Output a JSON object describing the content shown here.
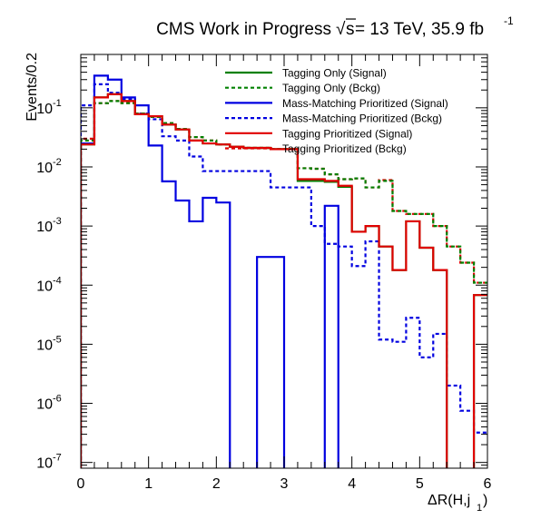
{
  "chart_data": {
    "type": "histogram-step",
    "title": "CMS Work in Progress",
    "energy_label": "s",
    "energy_value": " = 13 TeV, 35.9 fb",
    "lumi_exp": "-1",
    "ylabel": "Events/0.2",
    "xlabel_main": "ΔR(H,j",
    "xlabel_sub": "1",
    "xlabel_close": ")",
    "xlim": [
      0,
      6
    ],
    "ylim": [
      8e-08,
      0.8
    ],
    "yscale": "log",
    "bin_width": 0.2,
    "x_ticks": [
      "0",
      "1",
      "2",
      "3",
      "4",
      "5",
      "6"
    ],
    "y_ticks": [
      {
        "base": "10",
        "exp": "-7"
      },
      {
        "base": "10",
        "exp": "-6"
      },
      {
        "base": "10",
        "exp": "-5"
      },
      {
        "base": "10",
        "exp": "-4"
      },
      {
        "base": "10",
        "exp": "-3"
      },
      {
        "base": "10",
        "exp": "-2"
      },
      {
        "base": "10",
        "exp": "-1"
      }
    ],
    "legend_position": "top-right",
    "series": [
      {
        "name": "Tagging Only (Signal)",
        "color": "#008000",
        "style": "solid",
        "values": [
          0.024,
          0.15,
          0.17,
          0.13,
          0.078,
          0.072,
          0.052,
          0.043,
          0.028,
          0.025,
          0.024,
          0.022,
          0.021,
          0.021,
          0.02,
          0.02,
          0.0058,
          0.0058,
          0.0056,
          0.0046,
          0.0008,
          0.001,
          0.00045,
          0.00018,
          0.0012,
          0.00043,
          0.00018,
          0.0,
          0.0,
          6.8e-05
        ]
      },
      {
        "name": "Tagging Only (Bckg)",
        "color": "#008000",
        "style": "dashed",
        "values": [
          0.028,
          0.12,
          0.13,
          0.12,
          0.08,
          0.07,
          0.055,
          0.044,
          0.032,
          0.028,
          0.024,
          0.022,
          0.021,
          0.021,
          0.02,
          0.02,
          0.0095,
          0.0093,
          0.0075,
          0.0062,
          0.0064,
          0.0045,
          0.0058,
          0.0018,
          0.0016,
          0.0016,
          0.001,
          0.00045,
          0.00024,
          0.00011
        ]
      },
      {
        "name": "Mass-Matching Prioritized (Signal)",
        "color": "#0000e0",
        "style": "solid",
        "values": [
          0.025,
          0.35,
          0.3,
          0.15,
          0.11,
          0.023,
          0.0057,
          0.0027,
          0.0012,
          0.003,
          0.0025,
          0.0,
          0.0,
          0.0003,
          0.0003,
          0.0,
          0.0,
          0.0,
          0.0022,
          0.0,
          0.0,
          0.0,
          0.0,
          0.0,
          0.0,
          0.0,
          0.0,
          0.0,
          0.0,
          0.0
        ]
      },
      {
        "name": "Mass-Matching Prioritized (Bckg)",
        "color": "#0000e0",
        "style": "dashed",
        "values": [
          0.11,
          0.25,
          0.18,
          0.14,
          0.08,
          0.064,
          0.033,
          0.028,
          0.015,
          0.0085,
          0.0085,
          0.0085,
          0.0085,
          0.0085,
          0.0045,
          0.0045,
          0.0045,
          0.001,
          0.0005,
          0.00045,
          0.00021,
          0.00055,
          1.2e-05,
          1.1e-05,
          2.8e-05,
          6e-06,
          1.5e-05,
          2e-06,
          7.5e-07,
          3.2e-07
        ]
      },
      {
        "name": "Tagging Prioritized (Signal)",
        "color": "#e00000",
        "style": "solid",
        "values": [
          0.024,
          0.15,
          0.17,
          0.13,
          0.078,
          0.072,
          0.052,
          0.043,
          0.028,
          0.025,
          0.024,
          0.022,
          0.021,
          0.021,
          0.02,
          0.02,
          0.0062,
          0.0062,
          0.0058,
          0.0048,
          0.0008,
          0.001,
          0.00045,
          0.00018,
          0.0012,
          0.00043,
          0.00018,
          0.0,
          0.0,
          6.8e-05
        ]
      },
      {
        "name": "Tagging Prioritized (Bckg)",
        "color": "#e00000",
        "style": "dashed",
        "values": [
          0.03,
          0.12,
          0.13,
          0.12,
          0.08,
          0.07,
          0.055,
          0.044,
          0.032,
          0.028,
          0.024,
          0.022,
          0.021,
          0.021,
          0.02,
          0.02,
          0.0095,
          0.0093,
          0.0075,
          0.0062,
          0.0064,
          0.0045,
          0.006,
          0.0018,
          0.0016,
          0.0016,
          0.001,
          0.00045,
          0.00024,
          0.00011
        ]
      }
    ]
  }
}
